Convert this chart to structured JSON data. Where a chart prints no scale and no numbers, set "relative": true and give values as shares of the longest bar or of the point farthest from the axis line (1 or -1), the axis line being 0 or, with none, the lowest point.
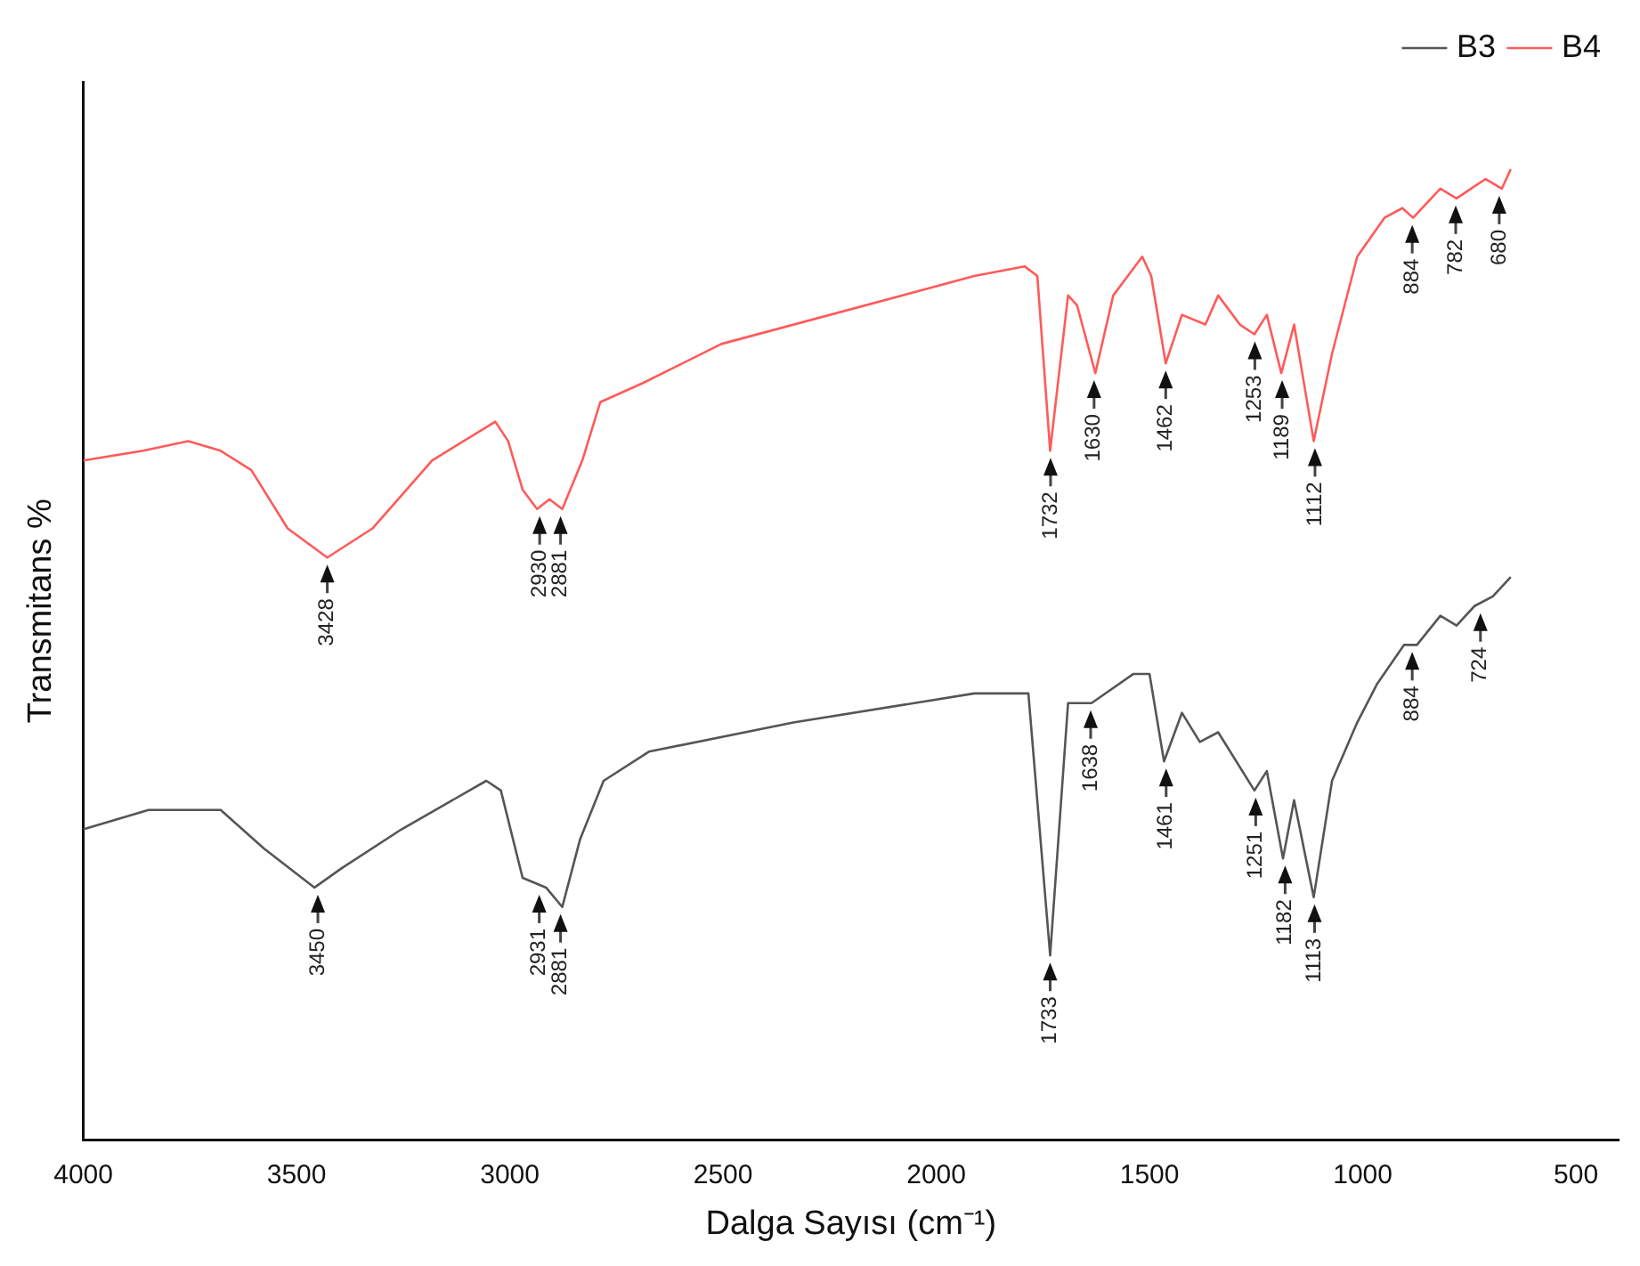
{
  "chart_data": {
    "type": "line",
    "relative": true,
    "xlabel": "Dalga Sayısı (cm⁻¹)",
    "ylabel": "Transmitans %",
    "xlim": [
      4000,
      400
    ],
    "xticks": [
      4000,
      3500,
      3000,
      2500,
      2000,
      1500,
      1000,
      500
    ],
    "legend": "top right",
    "marker": "none",
    "series": [
      {
        "name": "B3",
        "color": "#555555",
        "x": [
          4000,
          3847,
          3742,
          3678,
          3576,
          3458,
          3394,
          3254,
          3055,
          3021,
          2970,
          2915,
          2877,
          2835,
          2780,
          2674,
          2335,
          1911,
          1784,
          1733,
          1691,
          1636,
          1538,
          1500,
          1466,
          1424,
          1382,
          1339,
          1254,
          1225,
          1187,
          1161,
          1115,
          1072,
          1013,
          966,
          903,
          873,
          818,
          780,
          738,
          695,
          653
        ],
        "values": [
          0.32,
          0.34,
          0.34,
          0.34,
          0.3,
          0.26,
          0.28,
          0.32,
          0.37,
          0.36,
          0.27,
          0.26,
          0.24,
          0.31,
          0.37,
          0.4,
          0.43,
          0.46,
          0.46,
          0.19,
          0.45,
          0.45,
          0.48,
          0.48,
          0.39,
          0.44,
          0.41,
          0.42,
          0.36,
          0.38,
          0.29,
          0.35,
          0.25,
          0.37,
          0.43,
          0.47,
          0.51,
          0.51,
          0.54,
          0.53,
          0.55,
          0.56,
          0.58
        ]
      },
      {
        "name": "B4",
        "color": "#ff5a5a",
        "x": [
          4000,
          3860,
          3754,
          3678,
          3606,
          3521,
          3428,
          3322,
          3182,
          3034,
          3004,
          2970,
          2936,
          2907,
          2877,
          2830,
          2788,
          2687,
          2504,
          1911,
          1793,
          1763,
          1733,
          1691,
          1670,
          1627,
          1585,
          1517,
          1496,
          1462,
          1424,
          1369,
          1339,
          1288,
          1254,
          1225,
          1191,
          1161,
          1115,
          1072,
          1013,
          949,
          907,
          882,
          818,
          780,
          746,
          712,
          674,
          653
        ],
        "values": [
          0.7,
          0.71,
          0.72,
          0.71,
          0.69,
          0.63,
          0.6,
          0.63,
          0.7,
          0.74,
          0.72,
          0.67,
          0.65,
          0.66,
          0.65,
          0.7,
          0.76,
          0.78,
          0.82,
          0.89,
          0.9,
          0.89,
          0.71,
          0.87,
          0.86,
          0.79,
          0.87,
          0.91,
          0.89,
          0.8,
          0.85,
          0.84,
          0.87,
          0.84,
          0.83,
          0.85,
          0.79,
          0.84,
          0.72,
          0.81,
          0.91,
          0.95,
          0.96,
          0.95,
          0.98,
          0.97,
          0.98,
          0.99,
          0.98,
          1.0
        ]
      }
    ],
    "annotations": [
      {
        "text": "3428",
        "x": 3428,
        "y": 0.6
      },
      {
        "text": "2930",
        "x": 2930,
        "y": 0.65
      },
      {
        "text": "2881",
        "x": 2881,
        "y": 0.65
      },
      {
        "text": "1732",
        "x": 1732,
        "y": 0.71
      },
      {
        "text": "1630",
        "x": 1630,
        "y": 0.79
      },
      {
        "text": "1462",
        "x": 1462,
        "y": 0.8
      },
      {
        "text": "1253",
        "x": 1253,
        "y": 0.83
      },
      {
        "text": "1189",
        "x": 1189,
        "y": 0.79
      },
      {
        "text": "1112",
        "x": 1112,
        "y": 0.72
      },
      {
        "text": "884",
        "x": 884,
        "y": 0.95
      },
      {
        "text": "782",
        "x": 782,
        "y": 0.97
      },
      {
        "text": "680",
        "x": 680,
        "y": 0.98
      },
      {
        "text": "3450",
        "x": 3450,
        "y": 0.26
      },
      {
        "text": "2931",
        "x": 2931,
        "y": 0.26
      },
      {
        "text": "2881",
        "x": 2881,
        "y": 0.24
      },
      {
        "text": "1733",
        "x": 1733,
        "y": 0.19
      },
      {
        "text": "1638",
        "x": 1638,
        "y": 0.45
      },
      {
        "text": "1461",
        "x": 1461,
        "y": 0.39
      },
      {
        "text": "1251",
        "x": 1251,
        "y": 0.36
      },
      {
        "text": "1182",
        "x": 1182,
        "y": 0.29
      },
      {
        "text": "1113",
        "x": 1113,
        "y": 0.25
      },
      {
        "text": "884",
        "x": 884,
        "y": 0.51
      },
      {
        "text": "724",
        "x": 724,
        "y": 0.55
      }
    ]
  }
}
